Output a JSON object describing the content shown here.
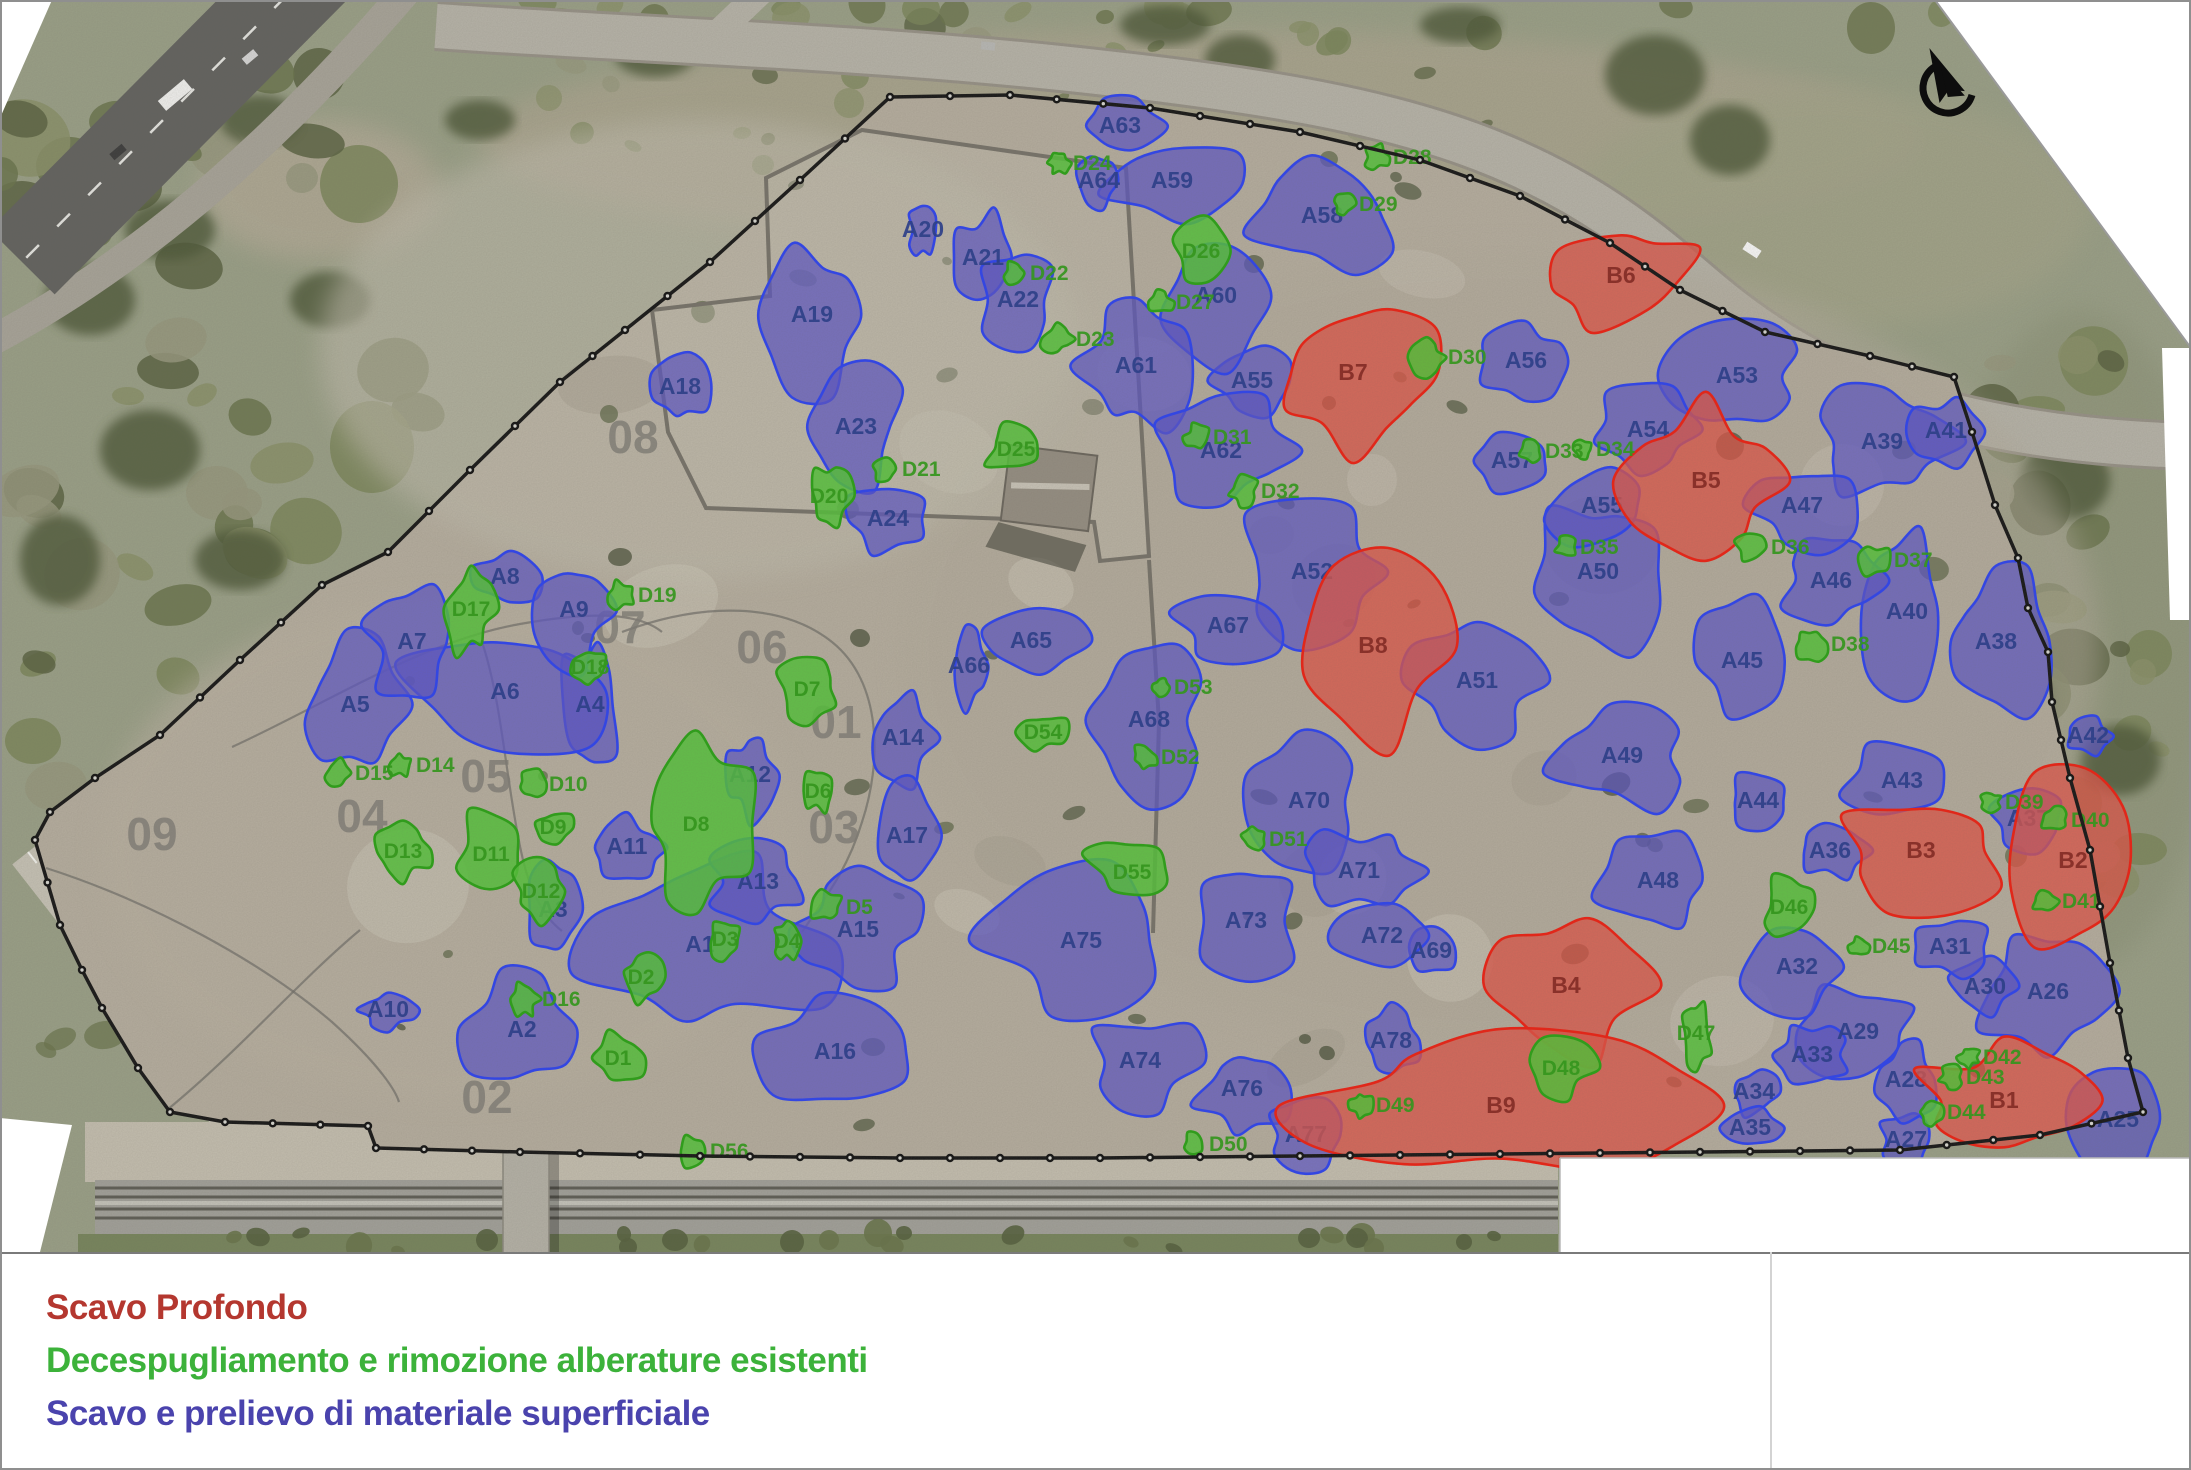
{
  "legend": {
    "items": [
      {
        "id": "deep-excavation",
        "label": "Scavo Profondo",
        "color": "#b4372f"
      },
      {
        "id": "clearing",
        "label": "Decespugliamento e rimozione alberature esistenti",
        "color": "#3cb23a"
      },
      {
        "id": "surface-excavation",
        "label": "Scavo e prelievo di materiale superficiale",
        "color": "#4a43ad"
      }
    ]
  },
  "compass": {
    "name": "north-arrow"
  },
  "map": {
    "colors": {
      "blue_fill": "#5b54c8",
      "blue_stroke": "#2d43f2",
      "red_fill": "#df5448",
      "red_stroke": "#ef2012",
      "green_fill": "#53c438",
      "green_stroke": "#2aa315",
      "label_blue": "#273c8e",
      "label_red": "#872620",
      "label_green": "#2f9c17",
      "zone_label": "#807d76"
    },
    "zone_numbers": [
      [
        "01",
        836,
        738
      ],
      [
        "02",
        487,
        1113
      ],
      [
        "03",
        834,
        843
      ],
      [
        "04",
        362,
        832
      ],
      [
        "05",
        486,
        792
      ],
      [
        "06",
        762,
        663
      ],
      [
        "07",
        620,
        643
      ],
      [
        "08",
        633,
        453
      ],
      [
        "09",
        152,
        850
      ]
    ],
    "areas": {
      "surface_excavation": [
        [
          "A1",
          700,
          945,
          120,
          92
        ],
        [
          "A2",
          522,
          1030,
          55,
          58
        ],
        [
          "A3",
          553,
          910,
          26,
          50
        ],
        [
          "A4",
          590,
          705,
          28,
          70
        ],
        [
          "A5",
          355,
          705,
          46,
          62
        ],
        [
          "A6",
          505,
          692,
          92,
          68
        ],
        [
          "A7",
          412,
          642,
          44,
          52
        ],
        [
          "A8",
          505,
          577,
          34,
          28
        ],
        [
          "A9",
          574,
          610,
          38,
          52
        ],
        [
          "A10",
          388,
          1010,
          30,
          18
        ],
        [
          "A11",
          627,
          847,
          36,
          28
        ],
        [
          "A12",
          750,
          775,
          24,
          42
        ],
        [
          "A13",
          758,
          882,
          44,
          36
        ],
        [
          "A14",
          903,
          738,
          30,
          46
        ],
        [
          "A15",
          858,
          930,
          58,
          52
        ],
        [
          "A16",
          835,
          1052,
          72,
          48
        ],
        [
          "A17",
          907,
          836,
          28,
          56
        ],
        [
          "A18",
          680,
          387,
          26,
          36
        ],
        [
          "A19",
          812,
          315,
          52,
          70
        ],
        [
          "A20",
          923,
          230,
          13,
          25
        ],
        [
          "A21",
          983,
          258,
          28,
          42
        ],
        [
          "A22",
          1018,
          300,
          38,
          48
        ],
        [
          "A23",
          856,
          427,
          48,
          56
        ],
        [
          "A24",
          888,
          519,
          42,
          33
        ],
        [
          "A25",
          2118,
          1120,
          42,
          46
        ],
        [
          "A26",
          2048,
          992,
          70,
          66
        ],
        [
          "A27",
          1906,
          1140,
          28,
          26
        ],
        [
          "A28",
          1906,
          1080,
          28,
          38
        ],
        [
          "A29",
          1858,
          1032,
          56,
          44
        ],
        [
          "A30",
          1985,
          987,
          33,
          26
        ],
        [
          "A31",
          1950,
          947,
          36,
          28
        ],
        [
          "A32",
          1797,
          967,
          52,
          48
        ],
        [
          "A33",
          1812,
          1055,
          33,
          28
        ],
        [
          "A34",
          1754,
          1092,
          26,
          23
        ],
        [
          "A35",
          1750,
          1128,
          28,
          18
        ],
        [
          "A36",
          1830,
          851,
          36,
          28
        ],
        [
          "A37",
          2028,
          819,
          38,
          28
        ],
        [
          "A38",
          1996,
          642,
          52,
          72
        ],
        [
          "A39",
          1882,
          442,
          66,
          52
        ],
        [
          "A40",
          1907,
          612,
          42,
          85
        ],
        [
          "A41",
          1946,
          431,
          33,
          33
        ],
        [
          "A42",
          2088,
          736,
          24,
          19
        ],
        [
          "A43",
          1902,
          781,
          56,
          38
        ],
        [
          "A44",
          1758,
          801,
          33,
          26
        ],
        [
          "A45",
          1742,
          661,
          42,
          56
        ],
        [
          "A46",
          1831,
          581,
          47,
          42
        ],
        [
          "A47",
          1802,
          506,
          52,
          42
        ],
        [
          "A48",
          1658,
          881,
          56,
          52
        ],
        [
          "A49",
          1622,
          756,
          70,
          52
        ],
        [
          "A50",
          1598,
          572,
          66,
          76
        ],
        [
          "A51",
          1477,
          681,
          61,
          56
        ],
        [
          "A52",
          1312,
          572,
          80,
          62
        ],
        [
          "A53",
          1737,
          376,
          66,
          52
        ],
        [
          "A54",
          1648,
          430,
          52,
          42
        ],
        [
          "A55",
          1252,
          381,
          42,
          33
        ],
        [
          "A55",
          1602,
          506,
          52,
          38
        ],
        [
          "A56",
          1526,
          361,
          42,
          38
        ],
        [
          "A57",
          1512,
          461,
          42,
          28
        ],
        [
          "A58",
          1322,
          216,
          70,
          56
        ],
        [
          "A59",
          1172,
          181,
          70,
          38
        ],
        [
          "A60",
          1216,
          296,
          56,
          66
        ],
        [
          "A61",
          1136,
          366,
          52,
          66
        ],
        [
          "A62",
          1221,
          451,
          70,
          52
        ],
        [
          "A63",
          1120,
          126,
          42,
          28
        ],
        [
          "A64",
          1099,
          181,
          20,
          28
        ],
        [
          "A65",
          1031,
          641,
          52,
          33
        ],
        [
          "A66",
          969,
          666,
          18,
          38
        ],
        [
          "A67",
          1228,
          626,
          52,
          33
        ],
        [
          "A68",
          1149,
          720,
          52,
          70
        ],
        [
          "A69",
          1431,
          951,
          28,
          26
        ],
        [
          "A70",
          1309,
          801,
          52,
          70
        ],
        [
          "A71",
          1359,
          871,
          56,
          38
        ],
        [
          "A72",
          1382,
          936,
          66,
          33
        ],
        [
          "A73",
          1246,
          921,
          52,
          61
        ],
        [
          "A74",
          1140,
          1061,
          52,
          50
        ],
        [
          "A75",
          1081,
          941,
          90,
          75
        ],
        [
          "A76",
          1242,
          1089,
          42,
          46
        ],
        [
          "A77",
          1306,
          1135,
          33,
          33
        ],
        [
          "A78",
          1391,
          1041,
          28,
          33
        ]
      ],
      "deep_excavation": [
        [
          "B1",
          2004,
          1101,
          89,
          56
        ],
        [
          "B2",
          2073,
          861,
          61,
          80
        ],
        [
          "B3",
          1921,
          851,
          80,
          52
        ],
        [
          "B4",
          1566,
          986,
          85,
          80
        ],
        [
          "B5",
          1706,
          481,
          75,
          70
        ],
        [
          "B6",
          1621,
          276,
          76,
          42,
          -0.35
        ],
        [
          "B7",
          1353,
          373,
          80,
          75
        ],
        [
          "B8",
          1373,
          646,
          75,
          89
        ],
        [
          "B9",
          1501,
          1106,
          190,
          66
        ]
      ],
      "clearing": [
        [
          "D1",
          618,
          1058,
          24,
          24
        ],
        [
          "D2",
          641,
          977,
          20,
          23
        ],
        [
          "D3",
          725,
          939,
          15,
          19
        ],
        [
          "D4",
          787,
          941,
          12,
          20
        ],
        [
          "D5",
          827,
          907,
          15,
          15
        ],
        [
          "D6",
          818,
          791,
          14,
          20
        ],
        [
          "D7",
          807,
          689,
          30,
          30
        ],
        [
          "D8",
          696,
          824,
          52,
          80
        ],
        [
          "D9",
          553,
          827,
          19,
          15
        ],
        [
          "D10",
          532,
          784,
          13,
          13
        ],
        [
          "D11",
          491,
          854,
          36,
          42
        ],
        [
          "D12",
          541,
          891,
          28,
          31
        ],
        [
          "D13",
          403,
          851,
          26,
          26
        ],
        [
          "D14",
          401,
          765,
          11,
          11
        ],
        [
          "D15",
          338,
          773,
          13,
          13
        ],
        [
          "D16",
          525,
          999,
          13,
          17
        ],
        [
          "D17",
          471,
          609,
          23,
          45
        ],
        [
          "D18",
          590,
          667,
          16,
          19
        ],
        [
          "D19",
          621,
          595,
          13,
          13
        ],
        [
          "D20",
          829,
          496,
          20,
          33
        ],
        [
          "D21",
          885,
          469,
          13,
          11
        ],
        [
          "D22",
          1015,
          273,
          11,
          11
        ],
        [
          "D23",
          1057,
          339,
          15,
          13
        ],
        [
          "D24",
          1059,
          163,
          10,
          10
        ],
        [
          "D25",
          1016,
          449,
          31,
          23
        ],
        [
          "D26",
          1201,
          251,
          26,
          30
        ],
        [
          "D27",
          1161,
          302,
          11,
          11
        ],
        [
          "D28",
          1377,
          157,
          12,
          12
        ],
        [
          "D29",
          1345,
          204,
          10,
          10
        ],
        [
          "D30",
          1427,
          357,
          17,
          17
        ],
        [
          "D31",
          1197,
          437,
          12,
          12
        ],
        [
          "D32",
          1243,
          491,
          14,
          14
        ],
        [
          "D33",
          1531,
          451,
          10,
          10
        ],
        [
          "D34",
          1583,
          449,
          9,
          9
        ],
        [
          "D35",
          1566,
          547,
          10,
          10
        ],
        [
          "D36",
          1751,
          547,
          16,
          16
        ],
        [
          "D37",
          1875,
          560,
          15,
          15
        ],
        [
          "D38",
          1811,
          644,
          16,
          16
        ],
        [
          "D39",
          1991,
          802,
          10,
          10
        ],
        [
          "D40",
          2055,
          820,
          12,
          12
        ],
        [
          "D41",
          2045,
          901,
          13,
          11
        ],
        [
          "D42",
          1969,
          1057,
          10,
          10
        ],
        [
          "D43",
          1951,
          1077,
          11,
          11
        ],
        [
          "D44",
          1931,
          1112,
          12,
          12
        ],
        [
          "D45",
          1859,
          946,
          9,
          9
        ],
        [
          "D46",
          1789,
          907,
          26,
          30
        ],
        [
          "D47",
          1696,
          1033,
          15,
          33
        ],
        [
          "D48",
          1561,
          1068,
          31,
          28
        ],
        [
          "D49",
          1361,
          1105,
          11,
          13
        ],
        [
          "D50",
          1194,
          1144,
          11,
          12
        ],
        [
          "D51",
          1254,
          839,
          11,
          11
        ],
        [
          "D52",
          1145,
          757,
          12,
          12
        ],
        [
          "D53",
          1161,
          687,
          9,
          9
        ],
        [
          "D54",
          1043,
          732,
          23,
          18
        ],
        [
          "D55",
          1132,
          872,
          42,
          26,
          0.35
        ],
        [
          "D56",
          693,
          1151,
          13,
          16
        ]
      ]
    }
  }
}
